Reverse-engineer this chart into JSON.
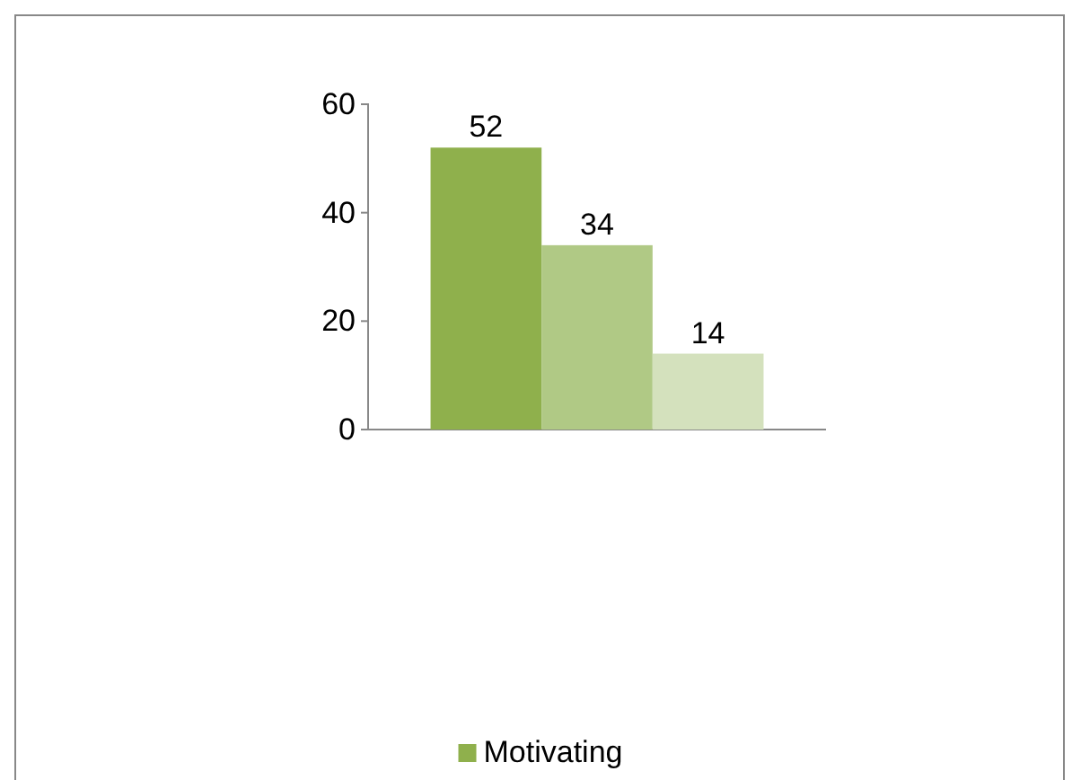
{
  "chart_data": {
    "type": "bar",
    "categories": [
      null
    ],
    "series": [
      {
        "name": "Motivating",
        "color": "#8fb04c",
        "values": [
          52
        ]
      },
      {
        "color": "#b0c985",
        "values": [
          34
        ]
      },
      {
        "color": "#d4e1bd",
        "values": [
          14
        ]
      }
    ],
    "ylim": [
      0,
      60
    ],
    "yticks": [
      0,
      20,
      40,
      60
    ],
    "grid": false,
    "data_labels": true,
    "legend": "bottom"
  }
}
